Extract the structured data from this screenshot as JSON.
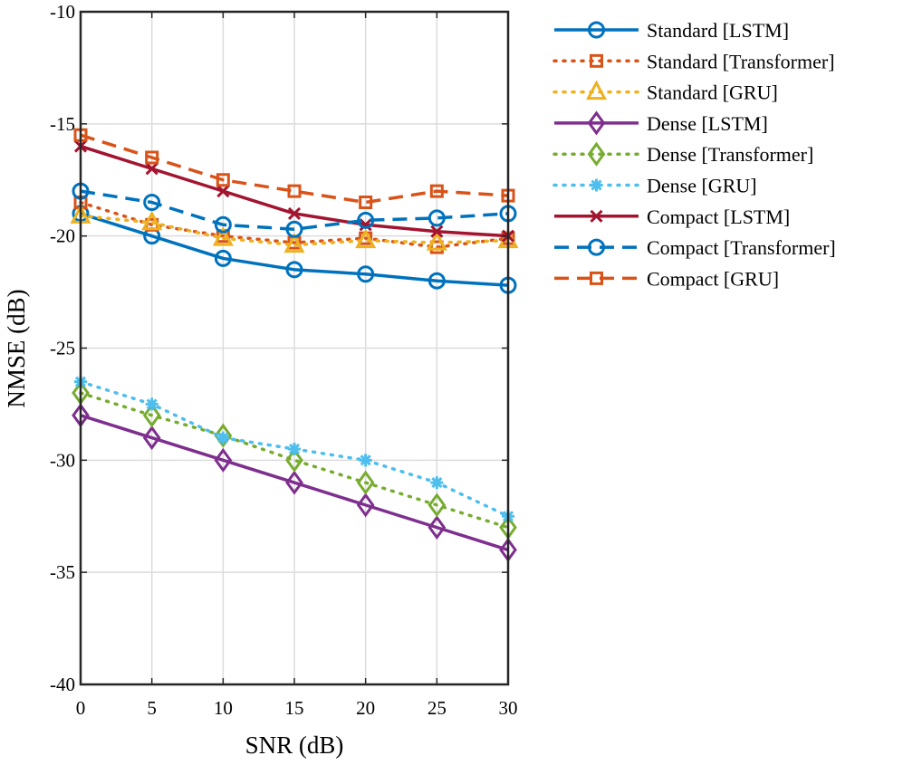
{
  "chart_data": {
    "type": "line",
    "xlabel": "SNR (dB)",
    "ylabel": "NMSE (dB)",
    "xlim": [
      0,
      30
    ],
    "ylim": [
      -40,
      -10
    ],
    "xticks": [
      0,
      5,
      10,
      15,
      20,
      25,
      30
    ],
    "yticks": [
      -10,
      -15,
      -20,
      -25,
      -30,
      -35,
      -40
    ],
    "grid": true,
    "legend_position": "outside-right",
    "x": [
      0,
      5,
      10,
      15,
      20,
      25,
      30
    ],
    "series": [
      {
        "name": "Standard [LSTM]",
        "color": "#0072BD",
        "dash": "solid",
        "marker": "circle",
        "values": [
          -19,
          -20,
          -21,
          -21.5,
          -21.7,
          -22,
          -22.2
        ]
      },
      {
        "name": "Standard [Transformer]",
        "color": "#D95319",
        "dash": "dotted",
        "marker": "square",
        "values": [
          -18.5,
          -19.5,
          -20,
          -20.3,
          -20.1,
          -20.5,
          -20.1
        ]
      },
      {
        "name": "Standard [GRU]",
        "color": "#EDB120",
        "dash": "dotted",
        "marker": "triangle",
        "values": [
          -19.1,
          -19.4,
          -20.1,
          -20.4,
          -20.2,
          -20.3,
          -20.2
        ]
      },
      {
        "name": "Dense [LSTM]",
        "color": "#7E2F8E",
        "dash": "solid",
        "marker": "diamond",
        "values": [
          -28,
          -29,
          -30,
          -31,
          -32,
          -33,
          -34
        ]
      },
      {
        "name": "Dense [Transformer]",
        "color": "#77AC30",
        "dash": "dotted",
        "marker": "diamond",
        "values": [
          -27,
          -28,
          -28.9,
          -30,
          -31,
          -32,
          -33
        ]
      },
      {
        "name": "Dense [GRU]",
        "color": "#4DBEEE",
        "dash": "dotted",
        "marker": "asterisk",
        "values": [
          -26.5,
          -27.5,
          -29,
          -29.5,
          -30,
          -31,
          -32.5
        ]
      },
      {
        "name": "Compact [LSTM]",
        "color": "#A2142F",
        "dash": "solid",
        "marker": "x",
        "values": [
          -16,
          -17,
          -18,
          -19,
          -19.5,
          -19.8,
          -20
        ]
      },
      {
        "name": "Compact [Transformer]",
        "color": "#0072BD",
        "dash": "dashed",
        "marker": "circle",
        "values": [
          -18,
          -18.5,
          -19.5,
          -19.7,
          -19.3,
          -19.2,
          -19
        ]
      },
      {
        "name": "Compact [GRU]",
        "color": "#D95319",
        "dash": "dashed",
        "marker": "square",
        "values": [
          -15.5,
          -16.5,
          -17.5,
          -18,
          -18.5,
          -18,
          -18.2
        ]
      }
    ]
  }
}
